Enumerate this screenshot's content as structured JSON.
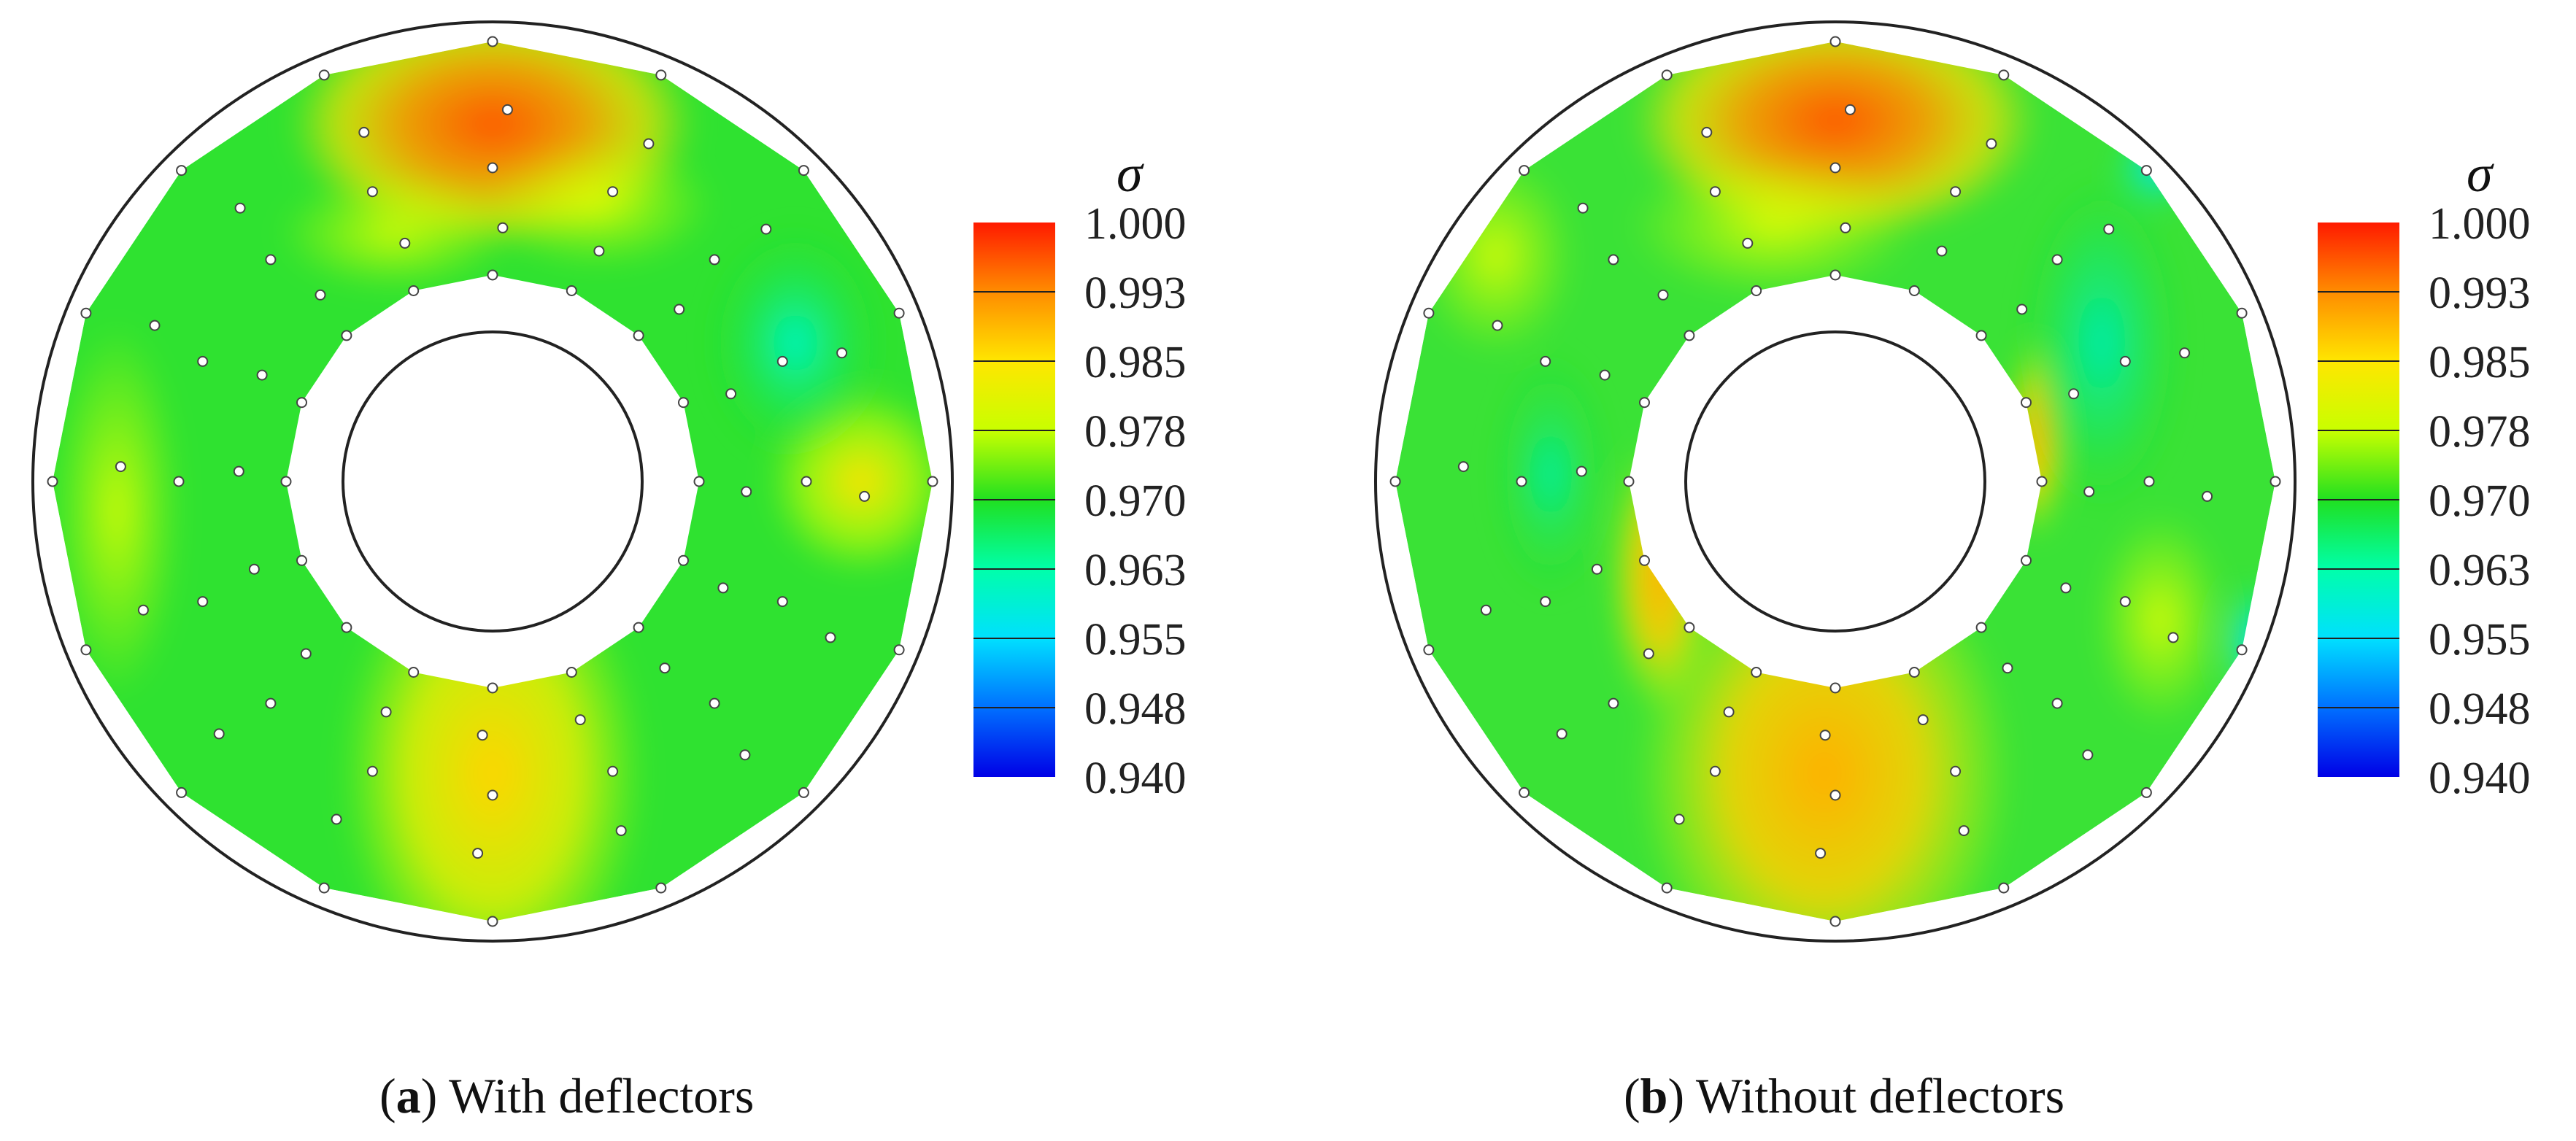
{
  "chart_data": [
    {
      "type": "heatmap",
      "subtype": "annular-contour",
      "title": "",
      "caption": {
        "open": "(",
        "letter": "a",
        "text": ") With deflectors"
      },
      "colorbar": {
        "label": "σ",
        "ticks": [
          "1.000",
          "0.993",
          "0.985",
          "0.978",
          "0.970",
          "0.963",
          "0.955",
          "0.948",
          "0.940"
        ],
        "range": [
          0.94,
          1.0
        ],
        "colors": [
          "#ff1a00",
          "#ff8c00",
          "#ffe600",
          "#c8ff00",
          "#20e020",
          "#00ffaa",
          "#00e0ff",
          "#0070ff",
          "#0000e6"
        ]
      },
      "annulus": {
        "inner_radius": 0.3,
        "outer_radius": 1.0,
        "measurement_rings": 5
      },
      "field": {
        "top_hot": 0.995,
        "bottom_warm": 0.984,
        "right_warm": 0.983,
        "background": 0.974,
        "upper_right_cool": 0.964
      },
      "probe_points": "rings of sample points at 8 radial rows"
    },
    {
      "type": "heatmap",
      "subtype": "annular-contour",
      "title": "",
      "caption": {
        "open": "(",
        "letter": "b",
        "text": ") Without deflectors"
      },
      "colorbar": {
        "label": "σ",
        "ticks": [
          "1.000",
          "0.993",
          "0.985",
          "0.978",
          "0.970",
          "0.963",
          "0.955",
          "0.948",
          "0.940"
        ],
        "range": [
          0.94,
          1.0
        ],
        "colors": [
          "#ff1a00",
          "#ff8c00",
          "#ffe600",
          "#c8ff00",
          "#20e020",
          "#00ffaa",
          "#00e0ff",
          "#0070ff",
          "#0000e6"
        ]
      },
      "annulus": {
        "inner_radius": 0.3,
        "outer_radius": 1.0,
        "measurement_rings": 5
      },
      "field": {
        "top_hot": 0.995,
        "bottom_warm": 0.988,
        "inner_ring_warm": 0.987,
        "background": 0.975,
        "right_cool": 0.962,
        "far_right_edge_cool": 0.955
      },
      "probe_points": "rings of sample points at 8 radial rows"
    }
  ]
}
